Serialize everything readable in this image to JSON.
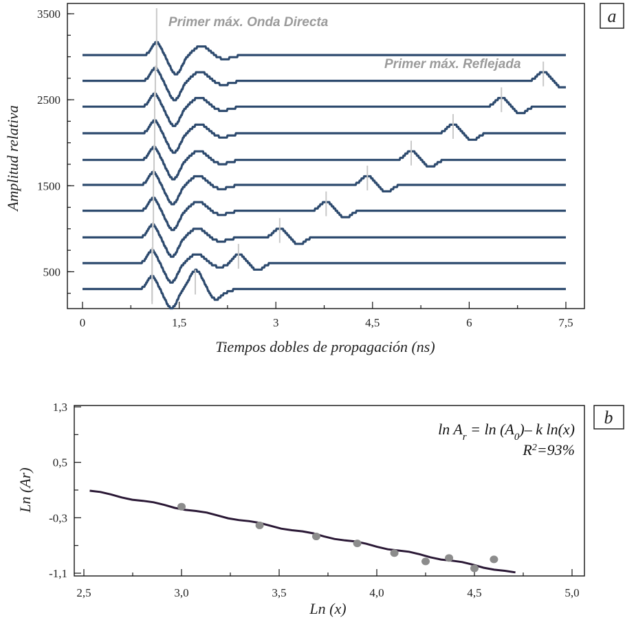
{
  "chart_data": [
    {
      "panel": "a",
      "type": "line",
      "xlabel": "Tiempos dobles de propagación (ns)",
      "ylabel": "Amplitud relativa",
      "xlim": [
        0,
        7.5
      ],
      "ylim": [
        0,
        3500
      ],
      "xticks": [
        0,
        1.5,
        3,
        4.5,
        6,
        7.5
      ],
      "xtick_labels": [
        "0",
        "1,5",
        "3",
        "4,5",
        "6",
        "7,5"
      ],
      "yticks": [
        500,
        1500,
        2500,
        3500
      ],
      "ytick_labels": [
        "500",
        "1500",
        "2500",
        "3500"
      ],
      "annotations": [
        "Primer máx. Onda Directa",
        "Primer máx. Reflejada"
      ],
      "line_color": "#2d4a6e",
      "marker_color": "#c8c8c8",
      "traces": [
        {
          "offset": 3020,
          "direct_max": 1.15,
          "reflected_max": null
        },
        {
          "offset": 2720,
          "direct_max": 1.13,
          "reflected_max": 7.15
        },
        {
          "offset": 2420,
          "direct_max": 1.12,
          "reflected_max": 6.5
        },
        {
          "offset": 2110,
          "direct_max": 1.12,
          "reflected_max": 5.75
        },
        {
          "offset": 1800,
          "direct_max": 1.11,
          "reflected_max": 5.1
        },
        {
          "offset": 1510,
          "direct_max": 1.1,
          "reflected_max": 4.42
        },
        {
          "offset": 1210,
          "direct_max": 1.1,
          "reflected_max": 3.78
        },
        {
          "offset": 900,
          "direct_max": 1.09,
          "reflected_max": 3.06
        },
        {
          "offset": 600,
          "direct_max": 1.08,
          "reflected_max": 2.42
        },
        {
          "offset": 300,
          "direct_max": 1.08,
          "reflected_max": 1.75
        }
      ]
    },
    {
      "panel": "b",
      "type": "scatter",
      "xlabel": "Ln (x)",
      "ylabel": "Ln (Ar)",
      "xlim": [
        2.5,
        5.0
      ],
      "ylim": [
        -1.1,
        1.3
      ],
      "xticks": [
        2.5,
        3.0,
        3.5,
        4.0,
        4.5,
        5.0
      ],
      "xtick_labels": [
        "2,5",
        "3,0",
        "3,5",
        "4,0",
        "4,5",
        "5,0"
      ],
      "yticks": [
        -1.1,
        -0.3,
        0.5,
        1.3
      ],
      "ytick_labels": [
        "-1,1",
        "-0,3",
        "0,5",
        "1,3"
      ],
      "equation": {
        "prefix": "ln A",
        "sub": "r",
        "rest": " = ln (A",
        "sub2": "0",
        "tail": ")– k ln(x)"
      },
      "r2": {
        "prefix": "R",
        "sup": "2",
        "rest": "=93%"
      },
      "point_color": "#8c8c8c",
      "fit_color": "#2a1835",
      "points": [
        {
          "x": 3.0,
          "y": -0.14
        },
        {
          "x": 3.4,
          "y": -0.41
        },
        {
          "x": 3.69,
          "y": -0.57
        },
        {
          "x": 3.9,
          "y": -0.67
        },
        {
          "x": 4.09,
          "y": -0.81
        },
        {
          "x": 4.25,
          "y": -0.93
        },
        {
          "x": 4.37,
          "y": -0.88
        },
        {
          "x": 4.5,
          "y": -1.03
        },
        {
          "x": 4.6,
          "y": -0.9
        }
      ],
      "fit_line": {
        "x": [
          2.53,
          4.71
        ],
        "y": [
          0.09,
          -1.1
        ]
      }
    }
  ]
}
